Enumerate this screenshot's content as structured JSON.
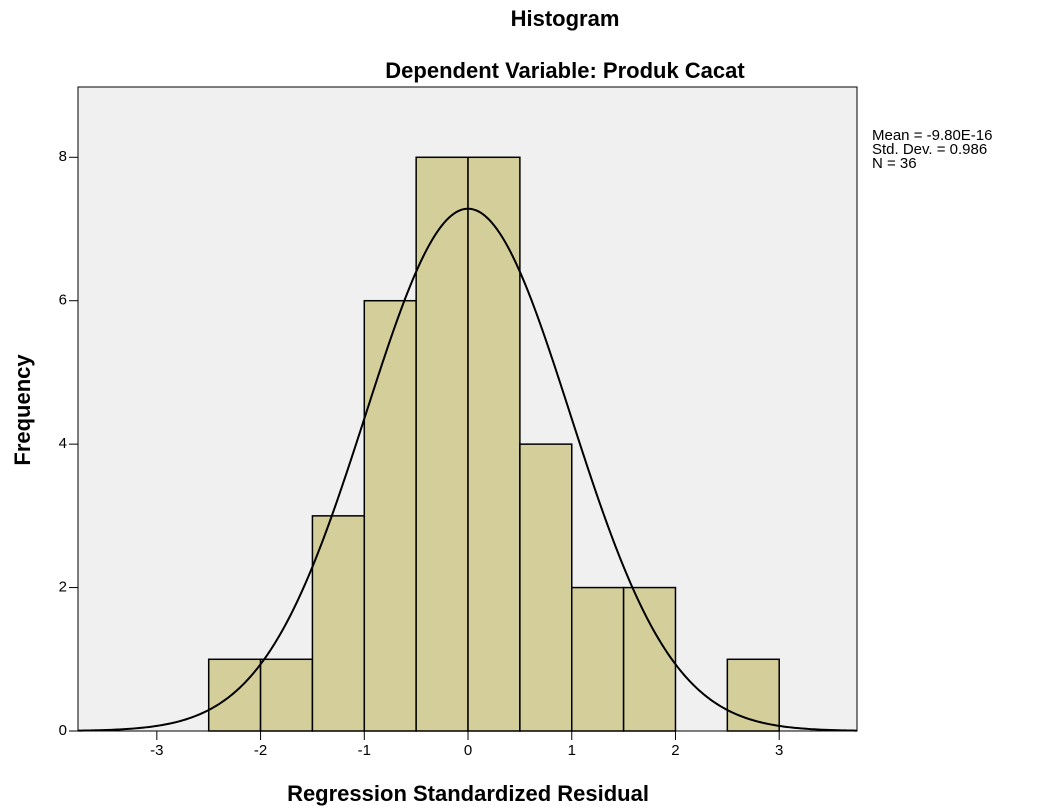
{
  "chart_data": {
    "type": "histogram",
    "title": "Histogram",
    "subtitle": "Dependent Variable: Produk Cacat",
    "x_label": "Regression Standardized Residual",
    "y_label": "Frequency",
    "bins": [
      -2.5,
      -2,
      -1.5,
      -1,
      -0.5,
      0,
      0.5,
      1,
      1.5,
      2,
      2.5,
      3
    ],
    "values": [
      1,
      1,
      3,
      6,
      8,
      8,
      4,
      2,
      2,
      0,
      1
    ],
    "color": "#d3ce9a",
    "xlim": [
      -3.76,
      3.75
    ],
    "ylim": [
      0,
      8.98
    ],
    "xticks": [
      -3,
      -2,
      -1,
      0,
      1,
      2,
      3
    ],
    "yticks": [
      0,
      2,
      4,
      6,
      8
    ],
    "stats": [
      {
        "value": -9.8e-16,
        "label": "Mean = -9.80E-16"
      },
      {
        "value": 0.986,
        "label": "Std. Dev. = 0.986"
      },
      {
        "value": 36,
        "label": "N = 36"
      }
    ]
  }
}
